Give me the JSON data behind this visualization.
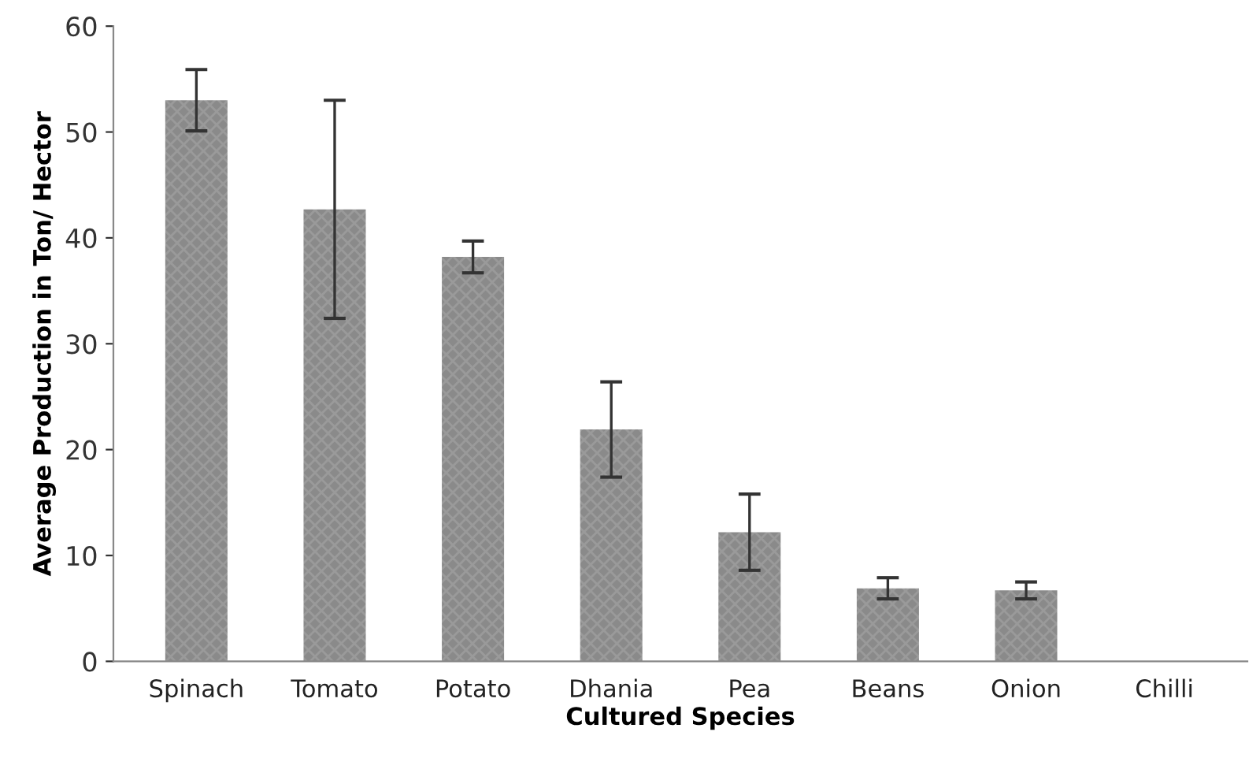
{
  "chart_data": {
    "type": "bar",
    "xlabel": "Cultured Species",
    "ylabel": "Average Production in Ton/ Hector",
    "categories": [
      "Spinach",
      "Tomato",
      "Potato",
      "Dhania",
      "Pea",
      "Beans",
      "Onion",
      "Chilli"
    ],
    "values": [
      53.0,
      42.7,
      38.2,
      21.9,
      12.2,
      6.9,
      6.7,
      0
    ],
    "errors": [
      2.9,
      10.3,
      1.5,
      4.5,
      3.6,
      1.0,
      0.8,
      null
    ],
    "color": "#8a8a8a",
    "ylim": [
      0,
      60
    ],
    "yticks": [
      0,
      10,
      20,
      30,
      40,
      50,
      60
    ],
    "grid": false
  }
}
